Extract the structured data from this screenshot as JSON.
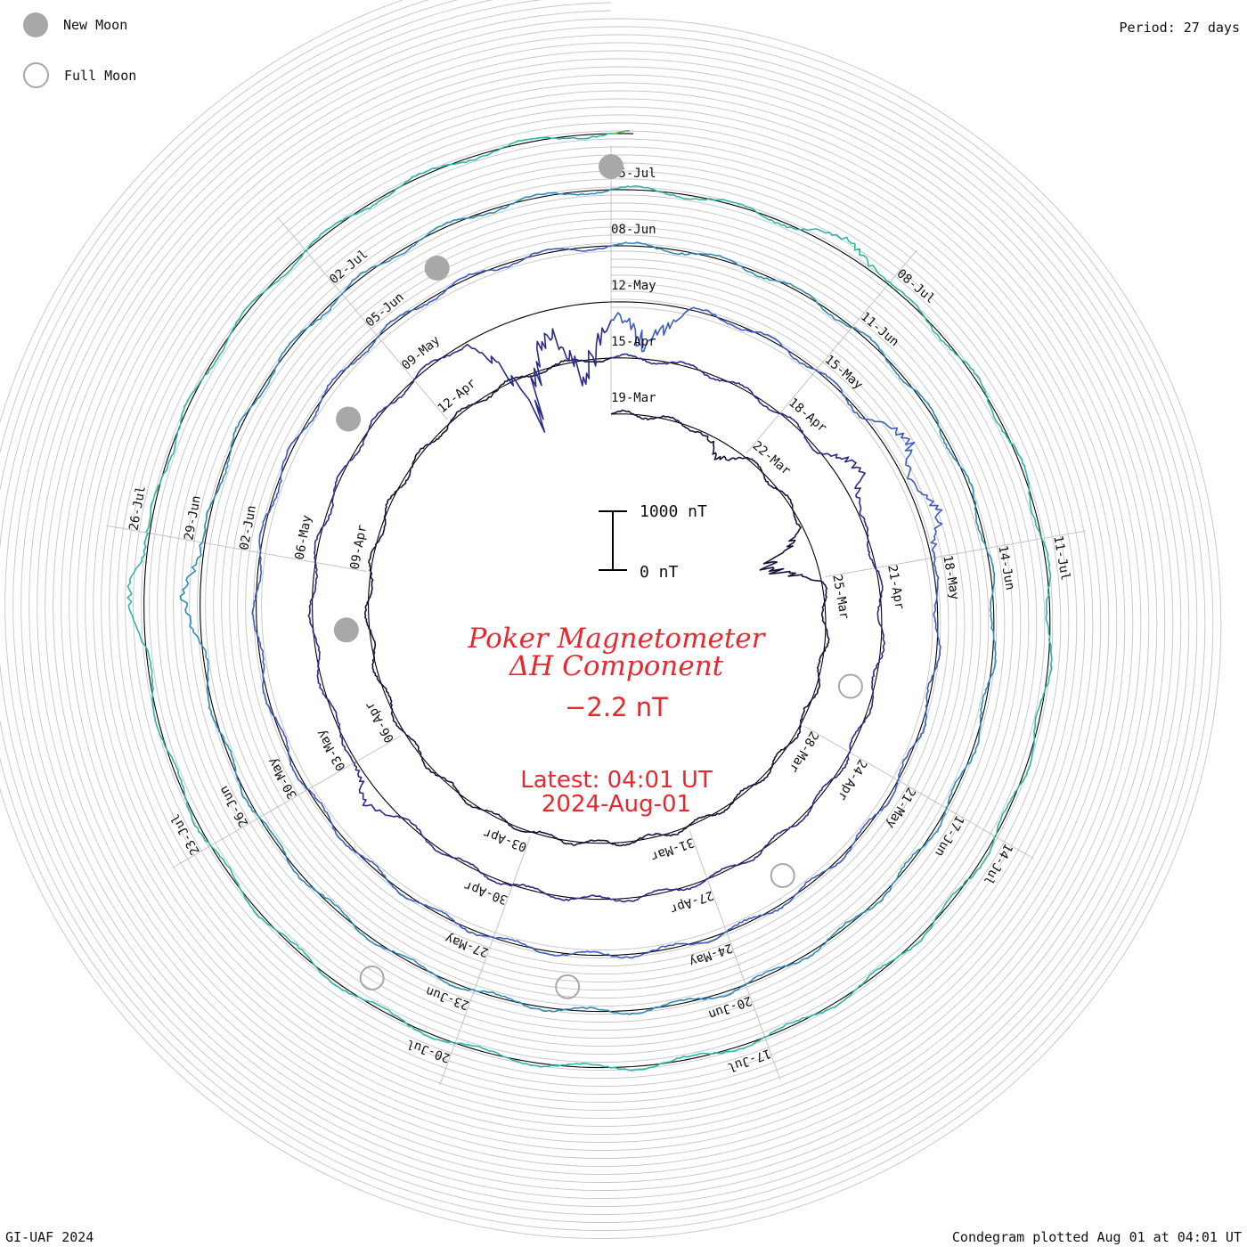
{
  "legend": {
    "new_moon": "New Moon",
    "full_moon": "Full Moon"
  },
  "period": "Period: 27 days",
  "footer": {
    "left": "GI-UAF 2024",
    "right": "Condegram plotted Aug 01 at 04:01 UT"
  },
  "title": {
    "line1": "Poker Magnetometer",
    "line2": "ΔH Component",
    "value": "−2.2 nT",
    "latest": "Latest: 04:01 UT",
    "date": "2024-Aug-01"
  },
  "scale": {
    "top": "1000 nT",
    "bottom": "0 nT"
  },
  "colors": {
    "title": "#e8282e",
    "grid": "#c4c4c4",
    "baseline": "#000000",
    "new_moon": "#a8a8a8",
    "full_moon": "#a8a8a8",
    "cycles": [
      "#14143e",
      "#2a2a8a",
      "#3a5cc4",
      "#2e8cb8",
      "#2eb8a4",
      "#4cb850",
      "#8cc030",
      "#a4a820",
      "#c06a14",
      "#b81c10"
    ]
  },
  "chart_data": {
    "type": "condegram-spiral",
    "title": "Poker Magnetometer ΔH Component",
    "current_value_nT": -2.2,
    "period_days": 27,
    "start_date": "2024-03-19",
    "end": "2024-08-01 04:01 UT",
    "scale_bar_nT": [
      0,
      1000
    ],
    "date_labels": [
      "19-Mar",
      "22-Mar",
      "25-Mar",
      "28-Mar",
      "31-Mar",
      "03-Apr",
      "06-Apr",
      "09-Apr",
      "12-Apr",
      "15-Apr",
      "18-Apr",
      "21-Apr",
      "24-Apr",
      "27-Apr",
      "30-Apr",
      "03-May",
      "06-May",
      "09-May",
      "12-May",
      "15-May",
      "18-May",
      "21-May",
      "24-May",
      "27-May",
      "30-May",
      "02-Jun",
      "05-Jun",
      "08-Jun",
      "11-Jun",
      "14-Jun",
      "17-Jun",
      "20-Jun",
      "23-Jun",
      "26-Jun",
      "29-Jun",
      "02-Jul",
      "05-Jul",
      "08-Jul",
      "11-Jul",
      "14-Jul",
      "17-Jul",
      "20-Jul",
      "23-Jul",
      "26-Jul"
    ],
    "new_moons": [
      "2024-04-08",
      "2024-05-08",
      "2024-06-06",
      "2024-07-05"
    ],
    "full_moons": [
      "2024-04-23",
      "2024-05-23",
      "2024-06-22",
      "2024-07-21"
    ],
    "disturbances": [
      {
        "date": "2024-03-21",
        "peak_nT": -350
      },
      {
        "date": "2024-03-24",
        "peak_nT": -1300
      },
      {
        "date": "2024-04-19",
        "peak_nT": 550
      },
      {
        "date": "2024-05-02",
        "peak_nT": 400
      },
      {
        "date": "2024-05-10",
        "peak_nT": -2200
      },
      {
        "date": "2024-05-11",
        "peak_nT": -1800
      },
      {
        "date": "2024-05-12",
        "peak_nT": -1000
      },
      {
        "date": "2024-05-16",
        "peak_nT": 550
      },
      {
        "date": "2024-05-17",
        "peak_nT": 450
      },
      {
        "date": "2024-06-28",
        "peak_nT": 400
      },
      {
        "date": "2024-07-07",
        "peak_nT": 300
      },
      {
        "date": "2024-07-25",
        "peak_nT": 350
      }
    ]
  }
}
